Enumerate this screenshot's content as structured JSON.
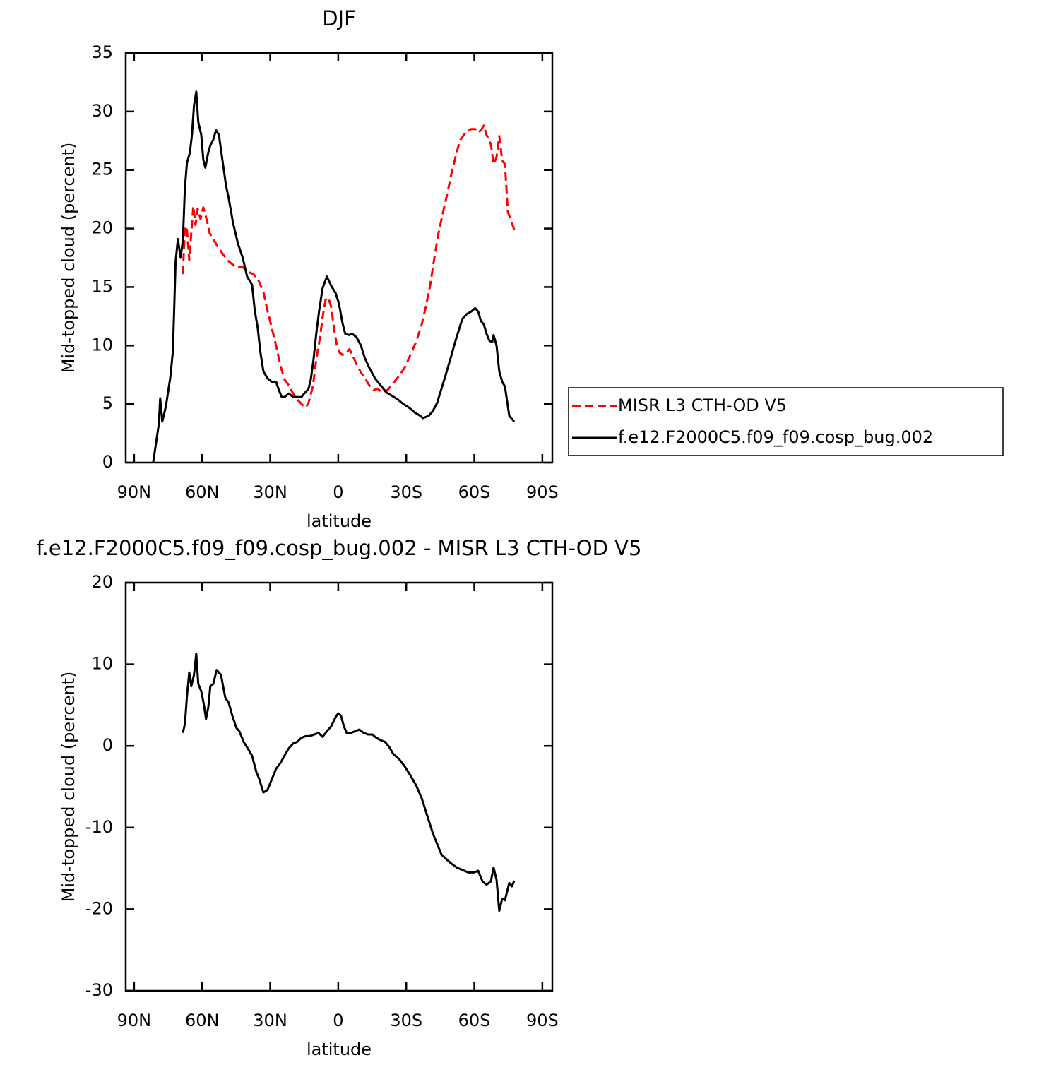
{
  "chart_data": [
    {
      "type": "line",
      "title": "DJF",
      "xlabel": "latitude",
      "ylabel": "Mid-topped cloud (percent)",
      "xlim": [
        93.7,
        -94.4
      ],
      "ylim": [
        0,
        35
      ],
      "xticks": [
        {
          "value": 90,
          "label": "90N"
        },
        {
          "value": 60,
          "label": "60N"
        },
        {
          "value": 30,
          "label": "30N"
        },
        0,
        {
          "value": -30,
          "label": "30S"
        },
        {
          "value": -60,
          "label": "60S"
        },
        {
          "value": -90,
          "label": "90S"
        }
      ],
      "yticks": [
        0,
        5,
        10,
        15,
        20,
        25,
        30,
        35
      ],
      "legend": "right",
      "series": [
        {
          "name": "MISR L3 CTH-OD V5",
          "color": "#ff0000",
          "dash": "dashed",
          "x": [
            68.5,
            67.6,
            66.7,
            65.7,
            64.8,
            63.9,
            62.9,
            62,
            60.7,
            59.5,
            57.9,
            56.7,
            55.1,
            53,
            50.8,
            48.3,
            45.2,
            42.1,
            39.9,
            37.4,
            35.5,
            33,
            31.2,
            29.3,
            27.4,
            25.5,
            23.7,
            21.8,
            19.9,
            18.1,
            16.2,
            14.3,
            13.1,
            11.2,
            9.7,
            8.1,
            6.9,
            5.6,
            4.4,
            3.1,
            1.9,
            0.6,
            -0.6,
            -1.9,
            -3.7,
            -5,
            -6.2,
            -8.1,
            -10,
            -11.8,
            -13.7,
            -15.6,
            -17.4,
            -19.3,
            -21.8,
            -24.3,
            -26.8,
            -29.3,
            -31.8,
            -34.3,
            -36.8,
            -38.6,
            -40.5,
            -42.4,
            -44.2,
            -46.1,
            -48,
            -49.8,
            -51.7,
            -53.6,
            -56.1,
            -58.6,
            -60.4,
            -61.7,
            -62.9,
            -64.2,
            -65.4,
            -67.3,
            -68.5,
            -69.8,
            -71,
            -72.3,
            -73.5,
            -74.8,
            -76,
            -77.6
          ],
          "values": [
            16.1,
            20.2,
            19.9,
            17.3,
            19.6,
            21.9,
            20.3,
            21.7,
            20.8,
            21.8,
            20.7,
            19.6,
            19.1,
            18.4,
            17.8,
            17.2,
            16.7,
            16.7,
            16.3,
            16.1,
            15.7,
            14.6,
            13,
            11.5,
            10,
            8.3,
            7.1,
            6.6,
            5.9,
            5.4,
            5,
            4.7,
            5.1,
            6.5,
            8.8,
            10.6,
            12.4,
            13.9,
            14.1,
            13.3,
            11.5,
            10,
            9.4,
            9.2,
            9.4,
            9.7,
            9.2,
            8.4,
            7.7,
            7.2,
            6.6,
            6.2,
            6.3,
            6,
            6.2,
            6.8,
            7.4,
            8.1,
            9.2,
            10.3,
            11.8,
            13.3,
            15.1,
            17.5,
            19.6,
            21.3,
            22.9,
            24.6,
            26.1,
            27.5,
            28.2,
            28.5,
            28.5,
            28.2,
            28.4,
            28.8,
            28,
            27.2,
            25.5,
            26.1,
            27.9,
            25.8,
            25.5,
            21.4,
            20.8,
            19.9
          ]
        },
        {
          "name": "f.e12.F2000C5.f09_f09.cosp_bug.002",
          "color": "#000000",
          "dash": "solid",
          "x": [
            81.6,
            79.1,
            78.5,
            77.6,
            76,
            74.1,
            72.9,
            71.7,
            70.7,
            69.5,
            68.5,
            67.6,
            66.7,
            65.4,
            64.5,
            63.6,
            62.6,
            61.7,
            60.4,
            59.5,
            58.6,
            57.3,
            56.4,
            55.1,
            53.9,
            52.6,
            51.1,
            49.5,
            48.3,
            46.4,
            44.2,
            42.1,
            40.2,
            38,
            36.8,
            35.5,
            34.3,
            33,
            31.2,
            29.3,
            27.4,
            26.2,
            24.9,
            23.7,
            21.8,
            19.9,
            18.1,
            16.2,
            15,
            13.1,
            12.1,
            10.9,
            9.7,
            8.4,
            6.9,
            5,
            3.1,
            1.2,
            -0.3,
            -1.9,
            -3.1,
            -4.7,
            -6.2,
            -8.1,
            -10,
            -11.8,
            -13.7,
            -16.2,
            -18.7,
            -21.2,
            -23.7,
            -26.2,
            -28.7,
            -31.2,
            -33.6,
            -36.1,
            -37.4,
            -39.9,
            -41.7,
            -43.6,
            -45.5,
            -47.4,
            -49.8,
            -51.7,
            -53.6,
            -54.8,
            -56.7,
            -58.6,
            -60.4,
            -61.7,
            -62.9,
            -64.2,
            -65.4,
            -66.7,
            -67.9,
            -68.5,
            -69.8,
            -71,
            -72.3,
            -73.5,
            -75.4,
            -77.6
          ],
          "values": [
            0,
            3.3,
            5.5,
            3.5,
            4.8,
            7.2,
            9.5,
            17.2,
            19.1,
            17.5,
            19,
            23.5,
            25.6,
            26.5,
            28,
            30.5,
            31.7,
            29.1,
            28,
            25.9,
            25.2,
            26.5,
            27.1,
            27.6,
            28.4,
            28,
            25.9,
            23.7,
            22.6,
            20.5,
            18.7,
            17.5,
            15.9,
            15.2,
            13,
            11.5,
            9.4,
            7.8,
            7.2,
            6.9,
            6.9,
            6.2,
            5.6,
            5.6,
            5.9,
            5.6,
            5.6,
            5.6,
            5.9,
            6.3,
            7.1,
            8.8,
            11,
            13,
            14.9,
            15.9,
            15.1,
            14.5,
            13.6,
            11.9,
            11,
            10.9,
            11,
            10.7,
            10,
            8.9,
            8.1,
            7.2,
            6.6,
            6,
            5.7,
            5.4,
            5,
            4.7,
            4.3,
            4,
            3.8,
            4,
            4.4,
            5.1,
            6.3,
            7.5,
            9.1,
            10.4,
            11.6,
            12.3,
            12.7,
            12.9,
            13.2,
            12.9,
            12.1,
            11.8,
            11,
            10.4,
            10.3,
            10.9,
            10,
            7.8,
            6.9,
            6.5,
            4,
            3.5
          ]
        }
      ]
    },
    {
      "type": "line",
      "title": "f.e12.F2000C5.f09_f09.cosp_bug.002 - MISR L3 CTH-OD V5",
      "xlabel": "latitude",
      "ylabel": "Mid-topped cloud (percent)",
      "xlim": [
        93.7,
        -94.4
      ],
      "ylim": [
        -30,
        20
      ],
      "xticks": [
        {
          "value": 90,
          "label": "90N"
        },
        {
          "value": 60,
          "label": "60N"
        },
        {
          "value": 30,
          "label": "30N"
        },
        0,
        {
          "value": -30,
          "label": "30S"
        },
        {
          "value": -60,
          "label": "60S"
        },
        {
          "value": -90,
          "label": "90S"
        }
      ],
      "yticks": [
        -30,
        -20,
        -10,
        0,
        10,
        20
      ],
      "series": [
        {
          "color": "#000000",
          "dash": "solid",
          "x": [
            68.5,
            67.6,
            66.7,
            65.7,
            64.8,
            63.6,
            62.6,
            61.7,
            60.4,
            59.2,
            58.3,
            57.3,
            56.4,
            55.1,
            53.6,
            51.7,
            49.8,
            48.3,
            46.7,
            44.9,
            43.6,
            41.7,
            39.9,
            38,
            36.1,
            34.9,
            33,
            31.2,
            29.3,
            27.4,
            25.5,
            23.7,
            21.8,
            19.9,
            18.1,
            16.2,
            14.3,
            12.5,
            10.6,
            8.7,
            6.9,
            5,
            3.1,
            1.2,
            0,
            -1.2,
            -2.5,
            -3.7,
            -5.6,
            -7.5,
            -9.3,
            -11.2,
            -13.1,
            -15,
            -16.8,
            -18.7,
            -20.6,
            -22.4,
            -24.3,
            -26.8,
            -29.3,
            -31.8,
            -34.3,
            -36.8,
            -39.3,
            -41.7,
            -43.6,
            -45.5,
            -47.4,
            -49.8,
            -52.3,
            -54.8,
            -57.3,
            -59.8,
            -61.7,
            -63.6,
            -65.4,
            -67.3,
            -68.5,
            -69.8,
            -71,
            -72.3,
            -73.5,
            -75.4,
            -76.6,
            -77.6
          ],
          "values": [
            1.6,
            2.7,
            6.1,
            9,
            7.3,
            8.7,
            11.3,
            7.6,
            6.7,
            5,
            3.3,
            4.7,
            7.3,
            7.6,
            9.3,
            8.7,
            5.9,
            5.3,
            3.7,
            2.2,
            1.8,
            0.5,
            -0.3,
            -1.2,
            -3.2,
            -4,
            -5.7,
            -5.4,
            -4.1,
            -2.8,
            -2.1,
            -1.2,
            -0.3,
            0.3,
            0.5,
            1,
            1.2,
            1.2,
            1.4,
            1.6,
            1.1,
            1.8,
            2.4,
            3.5,
            4,
            3.7,
            2.4,
            1.6,
            1.6,
            1.8,
            2,
            1.6,
            1.4,
            1.4,
            1,
            0.7,
            0.5,
            -0.1,
            -1,
            -1.6,
            -2.5,
            -3.6,
            -4.8,
            -6.4,
            -8.6,
            -10.7,
            -12,
            -13.3,
            -13.8,
            -14.4,
            -14.9,
            -15.2,
            -15.5,
            -15.5,
            -15.3,
            -16.6,
            -17,
            -16.6,
            -14.9,
            -16.4,
            -20.2,
            -18.7,
            -18.9,
            -16.8,
            -17.2,
            -16.5
          ]
        }
      ]
    }
  ]
}
